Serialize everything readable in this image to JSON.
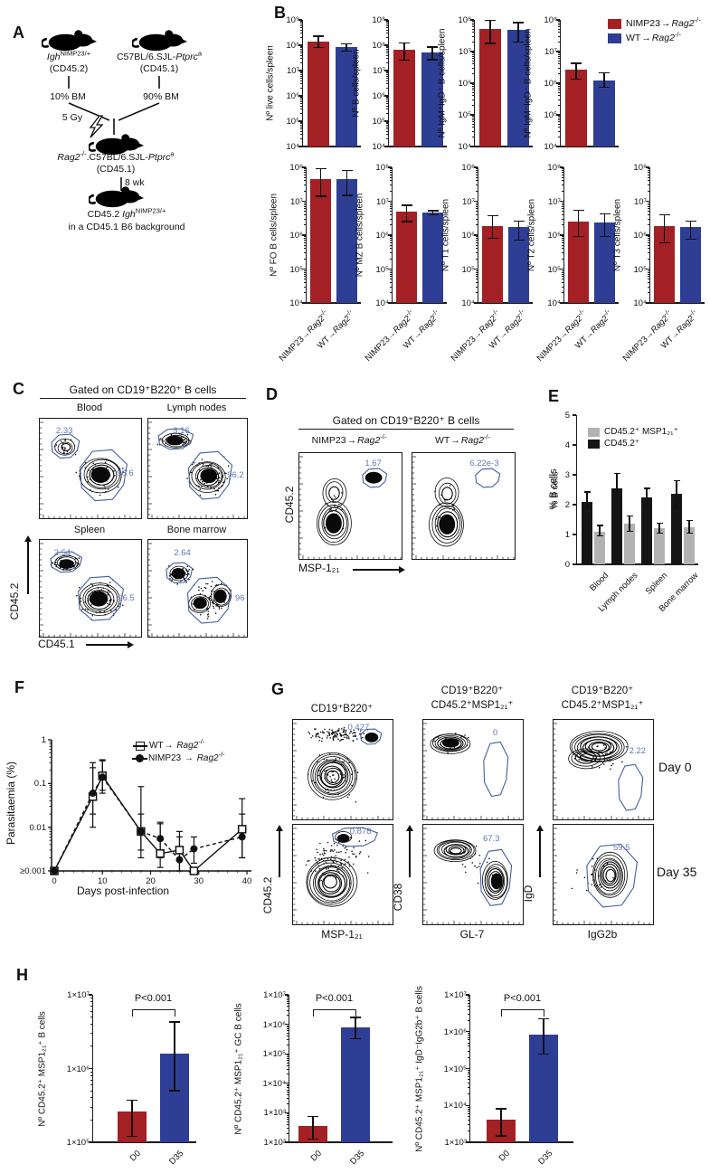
{
  "colors": {
    "red": "#a32024",
    "blue": "#2e3e94",
    "gray": "#b2b2b2",
    "black": "#151515",
    "gate_outline": "#44609f",
    "gate_text": "#6078b4"
  },
  "labels": {
    "arrow": "→",
    "nimp": {
      "pre": "NIMP23",
      "gene": "Rag2",
      "sup": "-/-"
    },
    "wt": {
      "pre": "WT",
      "gene": "Rag2",
      "sup": "-/-"
    }
  },
  "panelA": {
    "label": "A",
    "mouse1": {
      "gene": "Igh",
      "sup": "NIMP23/+",
      "strain": "(CD45.2)"
    },
    "mouse2": {
      "pre": "C57BL/6.SJL-",
      "gene": "Ptprc",
      "sup": "a",
      "strain": "(CD45.1)"
    },
    "bm1": "10% BM",
    "bm2": "90% BM",
    "gy": "5 Gy",
    "recipient": {
      "g1": "Rag2",
      "s1": "-/-",
      "mid": ".C57BL/6.SJL-",
      "g2": "Ptprc",
      "s2": "a",
      "strain": "(CD45.1)"
    },
    "wk": "8 wk",
    "result_pre": "CD45.2 ",
    "result_gene": "Igh",
    "result_sup": "NIMP23/+",
    "result_line2": "in a CD45.1 B6 background"
  },
  "panelB": {
    "label": "B",
    "legend": [
      {
        "ref": "nimp",
        "color": "red"
      },
      {
        "ref": "wt",
        "color": "blue"
      }
    ]
  },
  "panelC": {
    "label": "C",
    "header": "Gated on CD19⁺B220⁺ B cells",
    "ylabel": "CD45.2",
    "xlabel": "CD45.1",
    "plots": [
      {
        "title": "Blood",
        "gate_top": "2.33",
        "gate_main": "96.6"
      },
      {
        "title": "Lymph nodes",
        "gate_top": "3.16",
        "gate_main": "96.2"
      },
      {
        "title": "Spleen",
        "gate_top": "2.54",
        "gate_main": "96.5"
      },
      {
        "title": "Bone marrow",
        "gate_top": "2.64",
        "gate_main": "96"
      }
    ]
  },
  "panelD": {
    "label": "D",
    "header": "Gated on CD19⁺B220⁺ B cells",
    "ylabel": "CD45.2",
    "xlabel": "MSP-1₂₁",
    "plots": [
      {
        "gate": "1.67"
      },
      {
        "gate": "6.22e-3"
      }
    ]
  },
  "panelE": {
    "label": "E",
    "legend": [
      {
        "text": "CD45.2⁺ MSP1₂₁⁺",
        "color": "gray"
      },
      {
        "text": "CD45.2⁺",
        "color": "black"
      }
    ]
  },
  "panelF": {
    "label": "F",
    "xlabel": "Days post-infection",
    "ylabel": "Parasitaemia (%)"
  },
  "panelG": {
    "label": "G",
    "col_headers": [
      [
        "CD19⁺B220⁺"
      ],
      [
        "CD19⁺B220⁺",
        "CD45.2⁺MSP1₂₁⁺"
      ],
      [
        "CD19⁺B220⁺",
        "CD45.2⁺MSP1₂₁⁺"
      ]
    ],
    "row_labels": [
      "Day 0",
      "Day 35"
    ],
    "ylabels": [
      "CD45.2",
      "CD38",
      "IgD"
    ],
    "xlabels": [
      "MSP-1₂₁",
      "GL-7",
      "IgG2b"
    ],
    "gates": [
      [
        "0.427",
        "0",
        "2.22"
      ],
      [
        "0.878",
        "67.3",
        "59.5"
      ]
    ]
  },
  "panelH": {
    "label": "H"
  },
  "chart_data": {
    "panelB_top": [
      {
        "type": "bar",
        "scale": "log",
        "ylabel": "Nº live cells/spleen",
        "ylim": [
          10000.0,
          1000000000.0
        ],
        "categories": [
          "NIMP23→Rag2-/-",
          "WT→Rag2-/-"
        ],
        "values": [
          140000000.0,
          82000000.0
        ],
        "err_lo": [
          80000000.0,
          58000000.0
        ],
        "err_hi": [
          230000000.0,
          115000000.0
        ],
        "colors": [
          "red",
          "blue"
        ]
      },
      {
        "type": "bar",
        "scale": "log",
        "ylabel": "Nº B cells/spleen",
        "ylim": [
          10000.0,
          1000000000.0
        ],
        "categories": [
          "NIMP23→Rag2-/-",
          "WT→Rag2-/-"
        ],
        "values": [
          65000000.0,
          50000000.0
        ],
        "err_lo": [
          26000000.0,
          27000000.0
        ],
        "err_hi": [
          125000000.0,
          85000000.0
        ],
        "colors": [
          "red",
          "blue"
        ]
      },
      {
        "type": "bar",
        "scale": "log",
        "ylabel": "Nº IgM⁺IgD⁺ B cells/spleen",
        "ylim": [
          10000.0,
          100000000.0
        ],
        "categories": [
          "NIMP23→Rag2-/-",
          "WT→Rag2-/-"
        ],
        "values": [
          52000000.0,
          50000000.0
        ],
        "err_lo": [
          18000000.0,
          20000000.0
        ],
        "err_hi": [
          98000000.0,
          82000000.0
        ],
        "colors": [
          "red",
          "blue"
        ]
      },
      {
        "type": "bar",
        "scale": "log",
        "ylabel": "Nº IgM⁻IgD⁻ B cells/spleen",
        "ylim": [
          10000.0,
          100000000.0
        ],
        "categories": [
          "NIMP23→Rag2-/-",
          "WT→Rag2-/-"
        ],
        "values": [
          2600000.0,
          1250000.0
        ],
        "err_lo": [
          1350000.0,
          750000.0
        ],
        "err_hi": [
          4200000.0,
          2100000.0
        ],
        "colors": [
          "red",
          "blue"
        ]
      }
    ],
    "panelB_bottom": [
      {
        "type": "bar",
        "scale": "log",
        "ylabel": "Nº FO B cells/spleen",
        "ylim": [
          10000.0,
          100000000.0
        ],
        "categories": [
          "NIMP23→Rag2-/-",
          "WT→Rag2-/-"
        ],
        "values": [
          46000000.0,
          45000000.0
        ],
        "err_lo": [
          14000000.0,
          15000000.0
        ],
        "err_hi": [
          92000000.0,
          82000000.0
        ],
        "colors": [
          "red",
          "blue"
        ]
      },
      {
        "type": "bar",
        "scale": "log",
        "ylabel": "Nº MZ B cells/spleen",
        "ylim": [
          10000.0,
          100000000.0
        ],
        "categories": [
          "NIMP23→Rag2-/-",
          "WT→Rag2-/-"
        ],
        "values": [
          5000000.0,
          4600000.0
        ],
        "err_lo": [
          2500000.0,
          4000000.0
        ],
        "err_hi": [
          7600000.0,
          5200000.0
        ],
        "colors": [
          "red",
          "blue"
        ]
      },
      {
        "type": "bar",
        "scale": "log",
        "ylabel": "Nº T1 cells/spleen",
        "ylim": [
          10000.0,
          100000000.0
        ],
        "categories": [
          "NIMP23→Rag2-/-",
          "WT→Rag2-/-"
        ],
        "values": [
          1800000.0,
          1700000.0
        ],
        "err_lo": [
          800000.0,
          700000.0
        ],
        "err_hi": [
          3800000.0,
          2600000.0
        ],
        "colors": [
          "red",
          "blue"
        ]
      },
      {
        "type": "bar",
        "scale": "log",
        "ylabel": "Nº T2 cells/spleen",
        "ylim": [
          10000.0,
          100000000.0
        ],
        "categories": [
          "NIMP23→Rag2-/-",
          "WT→Rag2-/-"
        ],
        "values": [
          2500000.0,
          2400000.0
        ],
        "err_lo": [
          900000.0,
          900000.0
        ],
        "err_hi": [
          5500000.0,
          4200000.0
        ],
        "colors": [
          "red",
          "blue"
        ]
      },
      {
        "type": "bar",
        "scale": "log",
        "ylabel": "Nº T3 cells/spleen",
        "ylim": [
          10000.0,
          100000000.0
        ],
        "categories": [
          "NIMP23→Rag2-/-",
          "WT→Rag2-/-"
        ],
        "values": [
          1800000.0,
          1700000.0
        ],
        "err_lo": [
          600000.0,
          750000.0
        ],
        "err_hi": [
          4000000.0,
          2600000.0
        ],
        "colors": [
          "red",
          "blue"
        ]
      }
    ],
    "panelE": {
      "type": "bar",
      "scale": "linear",
      "ylabel": "% B cells",
      "ylim": [
        0,
        5
      ],
      "categories": [
        "Blood",
        "Lymph nodes",
        "Spleen",
        "Bone marrow"
      ],
      "series": [
        {
          "name": "CD45.2⁺",
          "color": "black",
          "values": [
            2.1,
            2.55,
            2.25,
            2.35
          ],
          "err_lo": [
            1.9,
            2.1,
            1.95,
            1.9
          ],
          "err_hi": [
            2.42,
            3.05,
            2.55,
            2.8
          ]
        },
        {
          "name": "CD45.2⁺ MSP1₂₁⁺",
          "color": "gray",
          "values": [
            1.1,
            1.35,
            1.2,
            1.25
          ],
          "err_lo": [
            0.95,
            1.1,
            1.05,
            1.05
          ],
          "err_hi": [
            1.3,
            1.62,
            1.38,
            1.47
          ]
        }
      ]
    },
    "panelF": {
      "type": "line",
      "scale_y": "log",
      "title": "",
      "xlabel": "Days post-infection",
      "ylabel": "Parasitaemia (%)",
      "x": [
        0,
        8,
        10,
        18,
        22,
        26,
        29,
        39
      ],
      "xticks": [
        0,
        10,
        20,
        30,
        40
      ],
      "yticks": [
        "1",
        "0.1",
        "0.01",
        "≥0.001"
      ],
      "ylim": [
        0.001,
        1
      ],
      "series": [
        {
          "name": "WT→ Rag2-/-",
          "marker": "square",
          "dash": false,
          "values": [
            0.001,
            0.05,
            0.15,
            0.008,
            0.0025,
            0.003,
            0.001,
            0.009
          ],
          "err_lo": [
            null,
            0.01,
            0.06,
            0.002,
            0.0012,
            0.001,
            null,
            0.002
          ],
          "err_hi": [
            null,
            0.23,
            0.35,
            0.085,
            0.012,
            0.008,
            null,
            0.045
          ]
        },
        {
          "name": "NIMP23 → Rag2-/-",
          "marker": "circle",
          "dash": true,
          "values": [
            0.001,
            0.06,
            0.14,
            0.008,
            0.0055,
            0.0018,
            0.0032,
            0.006
          ],
          "err_lo": [
            null,
            0.02,
            0.07,
            0.003,
            0.002,
            0.001,
            0.0015,
            0.002
          ],
          "err_hi": [
            null,
            0.3,
            0.33,
            0.02,
            0.013,
            0.006,
            0.006,
            0.02
          ]
        }
      ]
    },
    "panelH": [
      {
        "type": "bar",
        "scale": "log",
        "ylabel": "Nº CD45.2⁺ MSP1₂₁⁺ B cells",
        "ylim": [
          100000.0,
          10000000.0
        ],
        "categories": [
          "D0",
          "D35"
        ],
        "values": [
          260000.0,
          1600000.0
        ],
        "err_lo": [
          120000.0,
          500000.0
        ],
        "err_hi": [
          370000.0,
          4300000.0
        ],
        "colors": [
          "red",
          "blue"
        ],
        "p": "P<0.001"
      },
      {
        "type": "bar",
        "scale": "log",
        "ylabel": "Nº CD45.2⁺ MSP1₂₁⁺ GC B cells",
        "ylim": [
          100.0,
          10000000.0
        ],
        "categories": [
          "D0",
          "D35"
        ],
        "values": [
          350.0,
          800000.0
        ],
        "err_lo": [
          130.0,
          320000.0
        ],
        "err_hi": [
          750.0,
          1700000.0
        ],
        "colors": [
          "red",
          "blue"
        ],
        "p": "P<0.001"
      },
      {
        "type": "bar",
        "scale": "log",
        "ylabel": "Nº CD45.2⁺ MSP1₂₁⁺ IgD⁻IgG2b⁺ B cells",
        "ylim": [
          1000.0,
          10000000.0
        ],
        "categories": [
          "D0",
          "D35"
        ],
        "values": [
          4000.0,
          850000.0
        ],
        "err_lo": [
          1500.0,
          250000.0
        ],
        "err_hi": [
          8000.0,
          2200000.0
        ],
        "colors": [
          "red",
          "blue"
        ],
        "p": "P<0.001"
      }
    ]
  }
}
